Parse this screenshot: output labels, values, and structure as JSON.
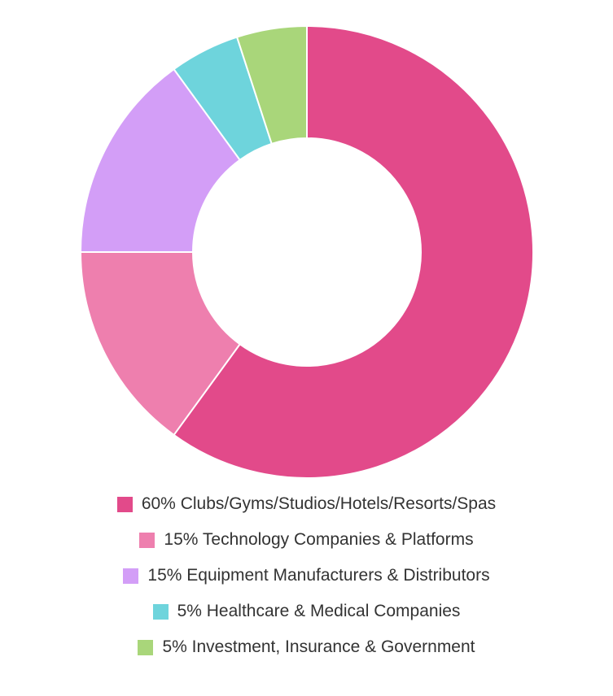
{
  "chart_data": {
    "type": "pie",
    "variant": "donut",
    "title": "",
    "legend_position": "bottom",
    "slices": [
      {
        "label": "60% Clubs/Gyms/Studios/Hotels/Resorts/Spas",
        "value": 60,
        "color": "#e24a8a"
      },
      {
        "label": "15% Technology Companies & Platforms",
        "value": 15,
        "color": "#ee7fae"
      },
      {
        "label": "15% Equipment Manufacturers & Distributors",
        "value": 15,
        "color": "#d39ef7"
      },
      {
        "label": "5% Healthcare & Medical Companies",
        "value": 5,
        "color": "#6ed4dc"
      },
      {
        "label": "5% Investment, Insurance & Government",
        "value": 5,
        "color": "#a9d67a"
      }
    ]
  }
}
